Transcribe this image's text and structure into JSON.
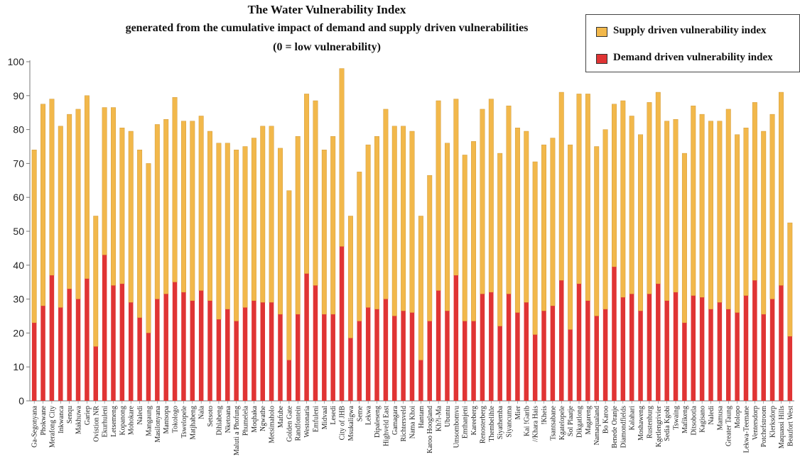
{
  "title_lines": [
    "The Water Vulnerability Index",
    "generated from the cumulative impact of demand and supply driven vulnerabilities",
    "(0 = low vulnerability)"
  ],
  "colors": {
    "supply": "#f2b84b",
    "demand": "#e03434",
    "axis": "#777777",
    "grid": "#dddddd"
  },
  "legend": {
    "supply_label": "Supply driven vulnerability index",
    "demand_label": "Demand driven vulnerability index"
  },
  "chart_data": {
    "type": "bar",
    "stacked": true,
    "title": "The Water Vulnerability Index generated from the cumulative impact of demand and supply driven vulnerabilities (0 = low vulnerability)",
    "ylim": [
      0,
      100
    ],
    "yticks": [
      0,
      10,
      20,
      30,
      40,
      50,
      60,
      70,
      80,
      90,
      100
    ],
    "grid": false,
    "legend_position": "top-right",
    "categories": [
      "Ga-Segonyana",
      "Phokwane",
      "Merafong City",
      "Inkwanca",
      "Senqu",
      "Makhuwa",
      "Gariep",
      "Ovistion NR",
      "Ekurhuleni",
      "Letsemeng",
      "Kopanong",
      "Mohokare",
      "Naledi",
      "Mangaung",
      "Masilonyana",
      "Mantsopa",
      "Tokologo",
      "Tswelopele",
      "Matjhabeng",
      "Nala",
      "Setsoto",
      "Dihlabeng",
      "Nketoana",
      "Maluti a Phofung",
      "Phumelela",
      "Moqhaka",
      "Ngwathe",
      "Metsimaholo",
      "Mafube",
      "Golden Gate",
      "Randfontein",
      "Westonaria",
      "Emfuleni",
      "Midvaal",
      "Lesedi",
      "City of JHB",
      "Msukaligwa",
      "Seme",
      "Lekwa",
      "Dipaleseng",
      "Highveld East",
      "Gamagara",
      "Richtersveld",
      "Nama Khoi",
      "Hantam",
      "Karoo Hoogland",
      "Kh?i-Ma",
      "Ubuntu",
      "Umsombomvu",
      "Emthanjeni",
      "Kareeberg",
      "Renosterberg",
      "Thembelihle",
      "Siyathemba",
      "Siyancuma",
      "Mier",
      "Kai !Garib",
      "//Khara Hais",
      "!Kheis",
      "Tsantsabane",
      "Kgatelopele",
      "Sol Plaatje",
      "Dikgatlong",
      "Magareng",
      "Namaqualand",
      "Bo Karoo",
      "Benede Oranje",
      "Diamondfields",
      "Kalahari",
      "Moshaweng",
      "Rustenburg",
      "Kgetlengrivier",
      "Sedia Kgobi",
      "Tswaing",
      "Mafikeng",
      "Ditsobotla",
      "Kagisano",
      "Naledi",
      "Mamusa",
      "Greater Taung",
      "Molopo",
      "Lekwa-Teemane",
      "Ventersdorp",
      "Potchefstroom",
      "Klerksdorp",
      "Maquassi Hills",
      "Beaufort West"
    ],
    "series": [
      {
        "name": "Demand driven vulnerability index",
        "values": [
          23,
          28,
          37,
          27.5,
          33,
          30,
          36,
          16,
          43,
          34,
          34.5,
          29,
          24.5,
          20,
          30,
          31.5,
          35,
          32,
          29.5,
          32.5,
          29.5,
          24,
          27,
          23.5,
          27.5,
          29.5,
          29,
          29,
          25.5,
          12,
          25.5,
          37.5,
          34,
          25.5,
          25.5,
          45.5,
          18.5,
          23.5,
          27.5,
          27,
          30,
          25,
          26.5,
          26,
          12,
          23.5,
          32.5,
          26.5,
          37,
          23.5,
          23.5,
          31.5,
          32,
          22,
          31.5,
          26,
          29,
          19.5,
          26.5,
          28,
          35.5,
          21,
          34.5,
          29.5,
          25,
          27,
          39.5,
          30.5,
          31.5,
          26.5,
          31.5,
          34.5,
          29.5,
          32,
          23,
          31,
          30.5,
          27,
          29,
          27,
          26,
          31,
          35.5,
          25.5,
          30,
          34,
          19
        ]
      },
      {
        "name": "Supply driven vulnerability index",
        "values": [
          51,
          59.5,
          52,
          53.5,
          51.5,
          56,
          54,
          38.5,
          43.5,
          52.5,
          46,
          50.5,
          49.5,
          50,
          51.5,
          51.5,
          54.5,
          50.5,
          53,
          51.5,
          50,
          52,
          49,
          50.5,
          47.5,
          48,
          52,
          52,
          49,
          50,
          52.5,
          53,
          54.5,
          48.5,
          52.5,
          52.5,
          36,
          44,
          48,
          51,
          56,
          56,
          54.5,
          53.5,
          42.5,
          43,
          56,
          49.5,
          52,
          49,
          53,
          54.5,
          57,
          51,
          55.5,
          54.5,
          50.5,
          51,
          49,
          49.5,
          55.5,
          54.5,
          56,
          61,
          50,
          53,
          48,
          58,
          52.5,
          52,
          56.5,
          56.5,
          53,
          51,
          50,
          56,
          54,
          55.5,
          53.5,
          59,
          52.5,
          49.5,
          52.5,
          54,
          54.5,
          57,
          33.5
        ]
      }
    ]
  }
}
